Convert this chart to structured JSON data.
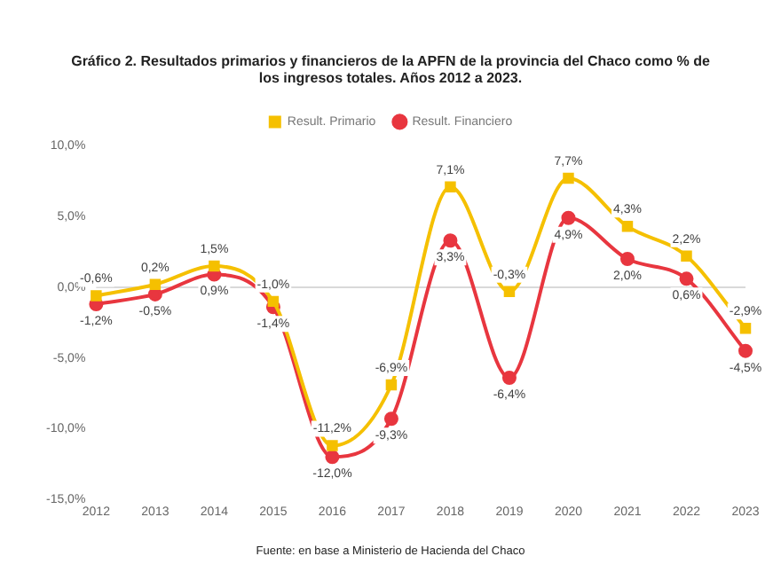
{
  "chart_data": {
    "type": "line",
    "title": "Gráfico 2. Resultados primarios y financieros de la APFN de la provincia del Chaco como % de los ingresos totales. Años 2012 a 2023.",
    "categories": [
      "2012",
      "2013",
      "2014",
      "2015",
      "2016",
      "2017",
      "2018",
      "2019",
      "2020",
      "2021",
      "2022",
      "2023"
    ],
    "series": [
      {
        "name": "Result. Primario",
        "color": "#f5c000",
        "marker": "square",
        "values": [
          -0.6,
          0.2,
          1.5,
          -1.0,
          -11.2,
          -6.9,
          7.1,
          -0.3,
          7.7,
          4.3,
          2.2,
          -2.9
        ],
        "value_labels": [
          "-0,6%",
          "0,2%",
          "1,5%",
          "-1,0%",
          "-11,2%",
          "-6,9%",
          "7,1%",
          "-0,3%",
          "7,7%",
          "4,3%",
          "2,2%",
          "-2,9%"
        ]
      },
      {
        "name": "Result. Financiero",
        "color": "#e8363f",
        "marker": "circle",
        "values": [
          -1.2,
          -0.5,
          0.9,
          -1.4,
          -12.0,
          -9.3,
          3.3,
          -6.4,
          4.9,
          2.0,
          0.6,
          -4.5
        ],
        "value_labels": [
          "-1,2%",
          "-0,5%",
          "0,9%",
          "-1,4%",
          "-12,0%",
          "-9,3%",
          "3,3%",
          "-6,4%",
          "4,9%",
          "2,0%",
          "0,6%",
          "-4,5%"
        ]
      }
    ],
    "ylim": [
      -15,
      10
    ],
    "yticks": [
      {
        "value": -15,
        "label": "-15,0%"
      },
      {
        "value": -10,
        "label": "-10,0%"
      },
      {
        "value": -5,
        "label": "-5,0%"
      },
      {
        "value": 0,
        "label": "0,0%"
      },
      {
        "value": 5,
        "label": "5,0%"
      },
      {
        "value": 10,
        "label": "10,0%"
      }
    ],
    "ref_lines": [
      {
        "axis": "y",
        "value": 0,
        "color": "#d9d9d9"
      }
    ],
    "legend": "top",
    "annotations": [
      "Fuente: en base a Ministerio de Hacienda del Chaco"
    ]
  }
}
